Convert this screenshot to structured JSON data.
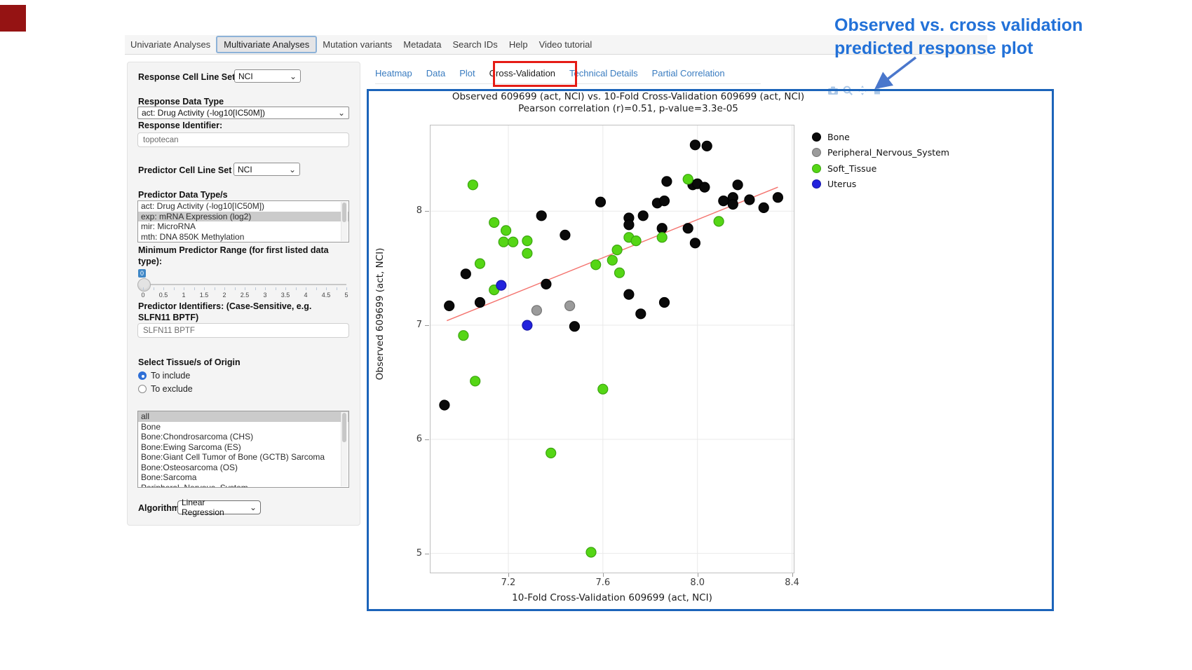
{
  "icons": {
    "dropdown_chevron": "⌄"
  },
  "nav": {
    "items": [
      {
        "label": "Univariate Analyses",
        "active": false
      },
      {
        "label": "Multivariate Analyses",
        "active": true
      },
      {
        "label": "Mutation variants",
        "active": false
      },
      {
        "label": "Metadata",
        "active": false
      },
      {
        "label": "Search IDs",
        "active": false
      },
      {
        "label": "Help",
        "active": false
      },
      {
        "label": "Video tutorial",
        "active": false
      }
    ]
  },
  "sidebar": {
    "response_cell_line_set": {
      "label": "Response Cell Line Set",
      "value": "NCI"
    },
    "response_data_type": {
      "label": "Response Data Type",
      "value": "act: Drug Activity (-log10[IC50M])"
    },
    "response_identifier": {
      "label": "Response Identifier:",
      "value": "topotecan"
    },
    "predictor_cell_line_set": {
      "label": "Predictor Cell Line Set",
      "value": "NCI"
    },
    "predictor_data_types": {
      "label": "Predictor Data Type/s",
      "options": [
        "act: Drug Activity (-log10[IC50M])",
        "exp: mRNA Expression (log2)",
        "mir: MicroRNA",
        "mth: DNA 850K Methylation"
      ],
      "selected": "exp: mRNA Expression (log2)"
    },
    "min_predictor_range": {
      "label": "Minimum Predictor Range (for first listed data type):",
      "value": "0",
      "tick_labels": [
        "0",
        "0.5",
        "1",
        "1.5",
        "2",
        "2.5",
        "3",
        "3.5",
        "4",
        "4.5",
        "5"
      ]
    },
    "predictor_identifiers": {
      "label": "Predictor Identifiers: (Case-Sensitive, e.g. SLFN11 BPTF)",
      "value": "SLFN11 BPTF"
    },
    "tissue_origin": {
      "label": "Select Tissue/s of Origin",
      "radios": [
        {
          "label": "To include",
          "checked": true
        },
        {
          "label": "To exclude",
          "checked": false
        }
      ],
      "options": [
        "all",
        "Bone",
        "Bone:Chondrosarcoma (CHS)",
        "Bone:Ewing Sarcoma (ES)",
        "Bone:Giant Cell Tumor of Bone (GCTB) Sarcoma",
        "Bone:Osteosarcoma (OS)",
        "Bone:Sarcoma",
        "Peripheral_Nervous_System"
      ],
      "selected": "all"
    },
    "algorithm": {
      "label": "Algorithm",
      "value": "Linear Regression"
    }
  },
  "main": {
    "tabs": [
      {
        "label": "Heatmap",
        "active": false
      },
      {
        "label": "Data",
        "active": false
      },
      {
        "label": "Plot",
        "active": false
      },
      {
        "label": "Cross-Validation",
        "active": true
      },
      {
        "label": "Technical Details",
        "active": false
      },
      {
        "label": "Partial Correlation",
        "active": false
      }
    ],
    "annotation": {
      "text_line1": "Observed vs. cross validation",
      "text_line2": "predicted response plot",
      "color": "#2271d8"
    }
  },
  "chart_data": {
    "type": "scatter",
    "title": "Observed 609699 (act, NCI) vs. 10-Fold Cross-Validation 609699 (act, NCI)",
    "subtitle": "Pearson correlation (r)=0.51, p-value=3.3e-05",
    "xlabel": "10-Fold Cross-Validation 609699 (act, NCI)",
    "ylabel": "Observed 609699 (act, NCI)",
    "xlim": [
      6.868,
      8.41
    ],
    "ylim": [
      4.826,
      8.757
    ],
    "grid": true,
    "legend_position": "right",
    "xticks": [
      {
        "v": 7.2,
        "label": "7.2"
      },
      {
        "v": 7.6,
        "label": "7.6"
      },
      {
        "v": 8.0,
        "label": "8.0"
      },
      {
        "v": 8.4,
        "label": "8.4"
      }
    ],
    "yticks": [
      {
        "v": 5,
        "label": "5"
      },
      {
        "v": 6,
        "label": "6"
      },
      {
        "v": 7,
        "label": "7"
      },
      {
        "v": 8,
        "label": "8"
      }
    ],
    "regression_line": {
      "x1": 6.94,
      "y1": 7.04,
      "x2": 8.34,
      "y2": 8.21,
      "color": "#f4736e"
    },
    "series": [
      {
        "name": "Bone",
        "color": "#0a0a0a",
        "stroke": "#000000",
        "points": [
          [
            6.93,
            6.3
          ],
          [
            6.95,
            7.17
          ],
          [
            7.02,
            7.45
          ],
          [
            7.08,
            7.2
          ],
          [
            7.34,
            7.96
          ],
          [
            7.36,
            7.36
          ],
          [
            7.44,
            7.79
          ],
          [
            7.48,
            6.99
          ],
          [
            7.59,
            8.08
          ],
          [
            7.71,
            7.94
          ],
          [
            7.71,
            7.88
          ],
          [
            7.71,
            7.27
          ],
          [
            7.76,
            7.1
          ],
          [
            7.77,
            7.96
          ],
          [
            7.83,
            8.07
          ],
          [
            7.85,
            7.85
          ],
          [
            7.86,
            8.09
          ],
          [
            7.86,
            7.2
          ],
          [
            7.87,
            8.26
          ],
          [
            7.96,
            7.85
          ],
          [
            7.98,
            8.23
          ],
          [
            7.99,
            8.58
          ],
          [
            7.99,
            7.72
          ],
          [
            8.0,
            8.24
          ],
          [
            8.03,
            8.21
          ],
          [
            8.04,
            8.57
          ],
          [
            8.11,
            8.09
          ],
          [
            8.15,
            8.12
          ],
          [
            8.15,
            8.06
          ],
          [
            8.17,
            8.23
          ],
          [
            8.22,
            8.1
          ],
          [
            8.28,
            8.03
          ],
          [
            8.34,
            8.12
          ]
        ]
      },
      {
        "name": "Peripheral_Nervous_System",
        "color": "#9b9b9b",
        "stroke": "#757575",
        "points": [
          [
            7.32,
            7.13
          ],
          [
            7.46,
            7.17
          ]
        ]
      },
      {
        "name": "Soft_Tissue",
        "color": "#55d615",
        "stroke": "#3ba50f",
        "points": [
          [
            7.01,
            6.91
          ],
          [
            7.05,
            8.23
          ],
          [
            7.06,
            6.51
          ],
          [
            7.08,
            7.54
          ],
          [
            7.14,
            7.9
          ],
          [
            7.14,
            7.31
          ],
          [
            7.18,
            7.73
          ],
          [
            7.19,
            7.83
          ],
          [
            7.22,
            7.73
          ],
          [
            7.28,
            7.74
          ],
          [
            7.28,
            7.63
          ],
          [
            7.38,
            5.88
          ],
          [
            7.55,
            5.01
          ],
          [
            7.57,
            7.53
          ],
          [
            7.6,
            6.44
          ],
          [
            7.64,
            7.57
          ],
          [
            7.66,
            7.66
          ],
          [
            7.67,
            7.46
          ],
          [
            7.71,
            7.77
          ],
          [
            7.74,
            7.74
          ],
          [
            7.85,
            7.77
          ],
          [
            7.96,
            8.28
          ],
          [
            8.09,
            7.91
          ]
        ]
      },
      {
        "name": "Uterus",
        "color": "#2222dd",
        "stroke": "#1717a8",
        "points": [
          [
            7.17,
            7.35
          ],
          [
            7.28,
            7.0
          ]
        ]
      }
    ]
  }
}
